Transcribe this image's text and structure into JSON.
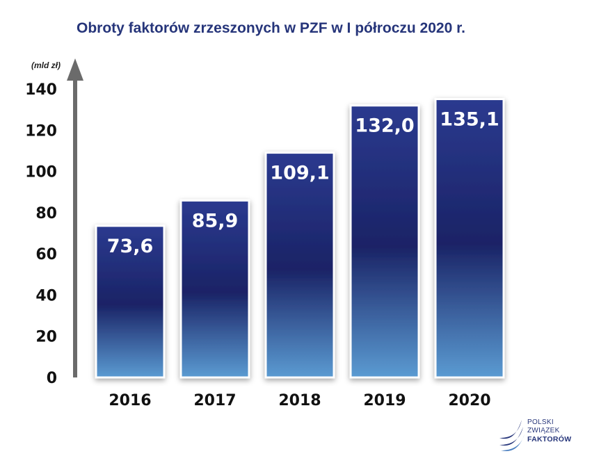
{
  "title": "Obroty faktorów zrzeszonych w PZF w I półroczu 2020 r.",
  "logo": {
    "line1": "POLSKI",
    "line2": "ZWIĄZEK",
    "line3": "FAKTORÓW"
  },
  "colors": {
    "title": "#26357a",
    "bar_top": "#2b3a8f",
    "bar_mid": "#1a2366",
    "bar_bottom": "#5b9bd2",
    "axis": "#6b6b6b"
  },
  "chart_data": {
    "type": "bar",
    "title": "Obroty faktorów zrzeszonych w PZF w I półroczu 2020 r.",
    "ylabel": "(mld zł)",
    "xlabel": "",
    "categories": [
      "2016",
      "2017",
      "2018",
      "2019",
      "2020"
    ],
    "values": [
      73.6,
      85.9,
      109.1,
      132.0,
      135.1
    ],
    "value_labels": [
      "73,6",
      "85,9",
      "109,1",
      "132,0",
      "135,1"
    ],
    "yticks": [
      "0",
      "20",
      "40",
      "60",
      "80",
      "100",
      "120",
      "140"
    ],
    "ylim": [
      0,
      140
    ],
    "grid": false,
    "legend": "none"
  }
}
